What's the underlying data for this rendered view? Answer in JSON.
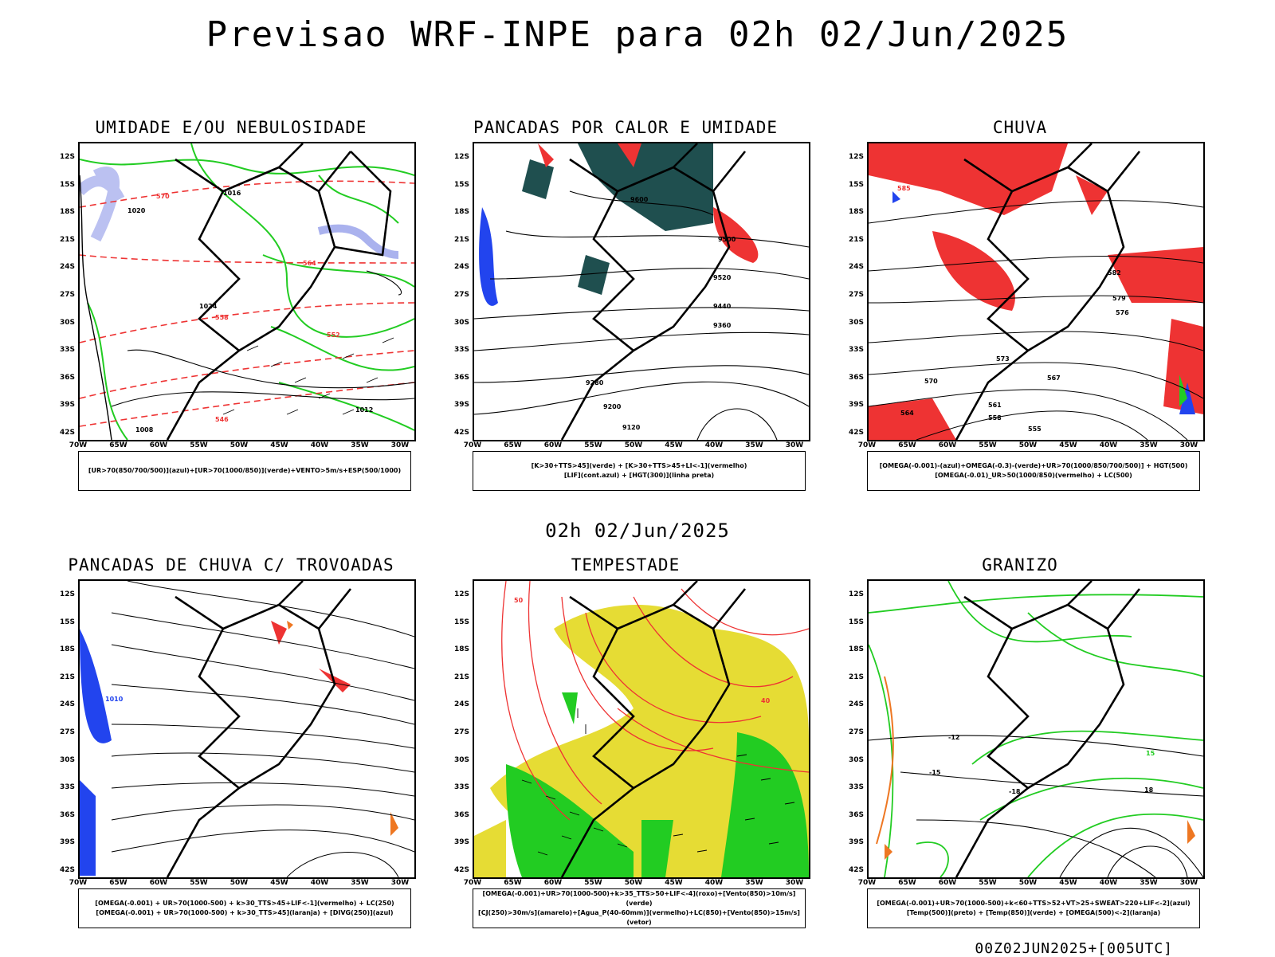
{
  "title": "Previsao WRF-INPE  para 02h 02/Jun/2025",
  "subtitle": "02h 02/Jun/2025",
  "footer": "00Z02JUN2025+[005UTC]",
  "axes": {
    "lat_labels": [
      "12S",
      "15S",
      "18S",
      "21S",
      "24S",
      "27S",
      "30S",
      "33S",
      "36S",
      "39S",
      "42S"
    ],
    "lon_labels": [
      "70W",
      "65W",
      "60W",
      "55W",
      "50W",
      "45W",
      "40W",
      "35W",
      "30W"
    ]
  },
  "panels": [
    {
      "title": "UMIDADE E/OU NEBULOSIDADE",
      "legend": [
        "[UR>70(850/700/500)](azul)+[UR>70(1000/850)](verde)+VENTO>5m/s+ESP(500/1000)"
      ],
      "contour_labels": [
        "1020",
        "1016",
        "1024",
        "1012",
        "1008",
        "570",
        "564",
        "558",
        "552",
        "546"
      ]
    },
    {
      "title": "PANCADAS POR CALOR E UMIDADE",
      "legend": [
        "[K>30+TTS>45](verde) + [K>30+TTS>45+LI<-1](vermelho)",
        "[LIF](cont.azul) + [HGT(300)](linha preta)"
      ],
      "contour_labels": [
        "9600",
        "9520",
        "9440",
        "9360",
        "9280",
        "9200",
        "9120",
        "9500"
      ]
    },
    {
      "title": "CHUVA",
      "legend": [
        "[OMEGA(-0.001)-(azul)+OMEGA(-0.3)-(verde)+UR>70(1000/850/700/500)] + HGT(500)",
        "[OMEGA(-0.01)_UR>50(1000/850)(vermelho) + LC(500)"
      ],
      "contour_labels": [
        "585",
        "582",
        "579",
        "576",
        "573",
        "570",
        "567",
        "564",
        "561",
        "558",
        "555"
      ]
    },
    {
      "title": "PANCADAS DE CHUVA C/ TROVOADAS",
      "legend": [
        "[OMEGA(-0.001) + UR>70(1000-500) + k>30_TTS>45+LIF<-1](vermelho) + LC(250)",
        "[OMEGA(-0.001) + UR>70(1000-500) + k>30_TTS>45](laranja) + [DIVG(250)](azul)"
      ],
      "contour_labels": [
        "1010"
      ]
    },
    {
      "title": "TEMPESTADE",
      "legend": [
        "[OMEGA(-0.001)+UR>70(1000-500)+k>35_TTS>50+LIF<-4](roxo)+[Vento(850)>10m/s](verde)",
        "[CJ(250)>30m/s](amarelo)+[Agua_P(40-60mm)](vermelho)+LC(850)+[Vento(850)>15m/s](vetor)"
      ],
      "contour_labels": [
        "40",
        "50"
      ]
    },
    {
      "title": "GRANIZO",
      "legend": [
        "[OMEGA(-0.001)+UR>70(1000-500)+k<60+TTS>52+VT>25+SWEAT>220+LIF<-2](azul)",
        "[Temp(500)](preto) + [Temp(850)](verde) + [OMEGA(500)<-2](laranja)"
      ],
      "contour_labels": [
        "-12",
        "-15",
        "-18",
        "15",
        "18"
      ]
    }
  ],
  "colors": {
    "green": "#22cc22",
    "red": "#ee3333",
    "blue": "#2244ee",
    "lavender": "#aab2ee",
    "teal": "#1f4f4f",
    "yellow": "#e6dc34",
    "orange": "#ee7722"
  }
}
